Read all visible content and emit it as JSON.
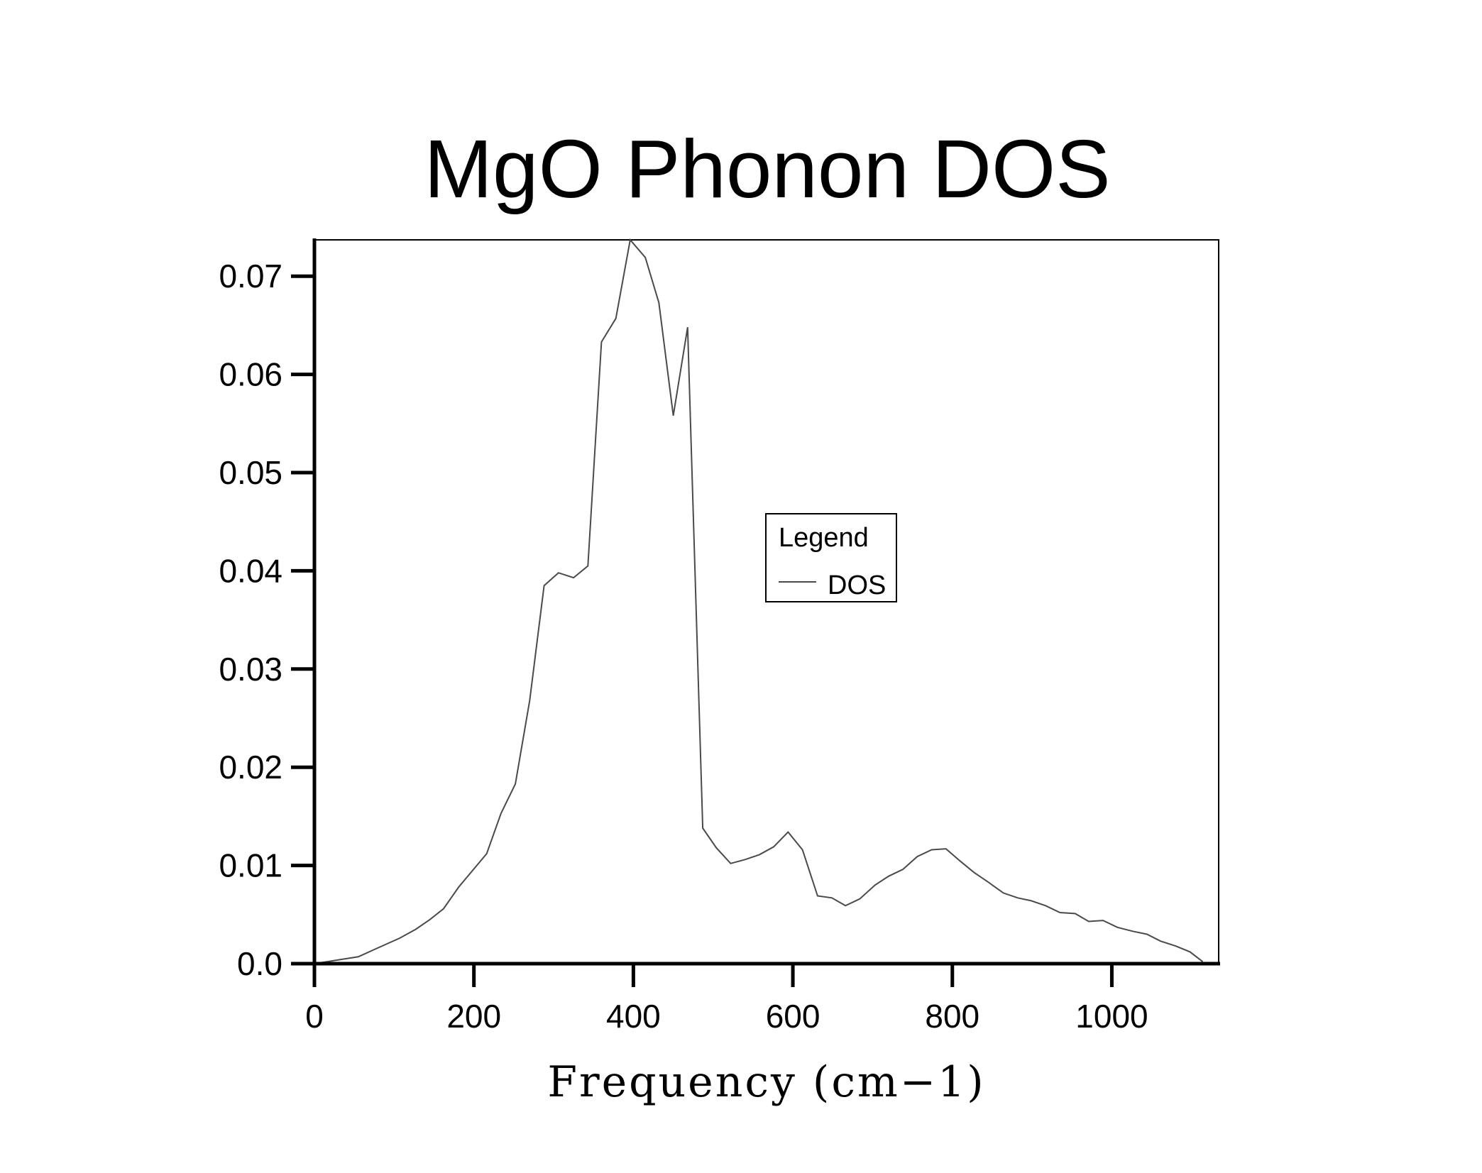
{
  "chart_data": {
    "type": "line",
    "title": "MgO Phonon DOS",
    "xlabel": "Frequency (cm−1)",
    "ylabel": "",
    "xlim": [
      0,
      1134
    ],
    "ylim": [
      0,
      0.0737
    ],
    "x_ticks": [
      0,
      200,
      400,
      600,
      800,
      1000
    ],
    "x_tick_labels": [
      "0",
      "200",
      "400",
      "600",
      "800",
      "1000"
    ],
    "y_ticks": [
      0,
      0.01,
      0.02,
      0.03,
      0.04,
      0.05,
      0.06,
      0.07
    ],
    "y_tick_labels": [
      "0.0",
      "0.01",
      "0.02",
      "0.03",
      "0.04",
      "0.05",
      "0.06",
      "0.07"
    ],
    "grid": false,
    "legend": {
      "title": "Legend",
      "placement": "center-right"
    },
    "series": [
      {
        "name": "DOS",
        "color": "#4a4a4a",
        "x": [
          0,
          55,
          74,
          107,
          127,
          145,
          162,
          181,
          216,
          234,
          252,
          270,
          288,
          306,
          325,
          343,
          360,
          378,
          396,
          415,
          432,
          450,
          468,
          487,
          504,
          522,
          540,
          558,
          576,
          594,
          612,
          631,
          649,
          666,
          684,
          703,
          720,
          738,
          756,
          774,
          792,
          809,
          827,
          845,
          864,
          882,
          899,
          917,
          935,
          954,
          971,
          989,
          1007,
          1026,
          1044,
          1061,
          1080,
          1098,
          1114
        ],
        "y": [
          0.0,
          0.0007,
          0.0014,
          0.0026,
          0.0035,
          0.0045,
          0.0056,
          0.0078,
          0.0112,
          0.0153,
          0.0183,
          0.0268,
          0.0385,
          0.0398,
          0.0393,
          0.0405,
          0.0633,
          0.0657,
          0.0737,
          0.0719,
          0.0673,
          0.0558,
          0.0648,
          0.0138,
          0.0118,
          0.0102,
          0.0106,
          0.0111,
          0.0119,
          0.0134,
          0.0116,
          0.0069,
          0.0067,
          0.0059,
          0.0066,
          0.008,
          0.0089,
          0.0096,
          0.0109,
          0.0116,
          0.0117,
          0.0105,
          0.0093,
          0.0083,
          0.0072,
          0.0067,
          0.0064,
          0.0059,
          0.0052,
          0.0051,
          0.0043,
          0.0044,
          0.0037,
          0.0033,
          0.003,
          0.0023,
          0.0018,
          0.0012,
          0.0002
        ]
      }
    ]
  }
}
